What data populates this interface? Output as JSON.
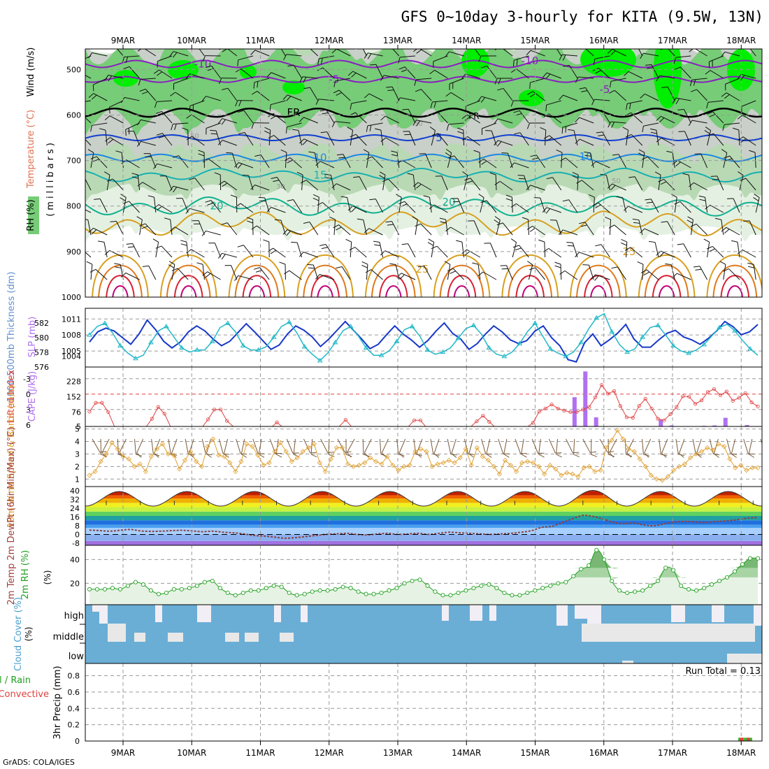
{
  "title": "GFS 0~10day 3-hourly for KITA (9.5W, 13N)",
  "credit": "GrADS: COLA/IGES",
  "dates": [
    "9MAR",
    "10MAR",
    "11MAR",
    "12MAR",
    "13MAR",
    "14MAR",
    "15MAR",
    "16MAR",
    "17MAR",
    "18MAR"
  ],
  "colors": {
    "rh_light": "#e4f1e2",
    "rh_mid": "#b9d9b5",
    "rh_gray": "#c9cfc9",
    "rh_green": "#77cc77",
    "rh_bright": "#00ee00",
    "temp_purple": "#8a1fc0",
    "temp_black": "#000000",
    "temp_blue": "#1040d0",
    "temp_lblue": "#1c88e0",
    "temp_teal": "#18b0b0",
    "temp_green": "#10b090",
    "temp_gold": "#d8a020",
    "temp_orange": "#e07818",
    "temp_red": "#d82030",
    "temp_magenta": "#c0007a",
    "thickness": "#1838c8",
    "slp": "#20b8c8",
    "cape": "#b070f0",
    "li": "#e04040",
    "wind10": "#e0a030",
    "temp2m": "#404040",
    "dew": "#a06060",
    "rh2m": "#20a020",
    "cloud": "#6aaed6",
    "precip": "#e04040"
  },
  "chart_data": [
    {
      "type": "contour-panel",
      "name": "upper-air",
      "ylabel": "(millibars)",
      "yaxis_title_parts": [
        "RH (%)",
        "Temperature (°C)",
        "Wind (m/s)"
      ],
      "y_ticks": [
        500,
        600,
        700,
        800,
        900,
        1000
      ],
      "ylim": [
        1000,
        455
      ],
      "contours": [
        {
          "label": "-10",
          "level_mb": 488
        },
        {
          "label": "-5",
          "level_mb": 522
        },
        {
          "label": "FR",
          "level_mb": 590
        },
        {
          "label": "5",
          "level_mb": 650
        },
        {
          "label": "10",
          "level_mb": 694
        },
        {
          "label": "15",
          "level_mb": 730
        },
        {
          "label": "20",
          "level_mb": 795
        },
        {
          "label": "25",
          "level_mb": 870
        }
      ],
      "labels_shown": [
        "-10",
        "-5",
        "FR",
        "5",
        "10",
        "15",
        "20",
        "25",
        "30",
        "50"
      ]
    },
    {
      "type": "line",
      "name": "thickness-slp",
      "ylabel_left": "1000-500mb Thickness (dm)",
      "ylabel_right": "SLP (mb)",
      "y_ticks_left": [
        576,
        578,
        580,
        582
      ],
      "y_ticks_right": [
        1004,
        1005,
        1008,
        1011
      ],
      "ylim_left": [
        576,
        584
      ],
      "series": [
        {
          "name": "Thickness",
          "values": [
            579.4,
            580.8,
            581.3,
            580.9,
            580.0,
            579.1,
            580.5,
            582.4,
            581.1,
            579.5,
            578.6,
            579.4,
            580.8,
            581.6,
            580.9,
            579.8,
            578.9,
            579.5,
            580.7,
            581.9,
            580.8,
            579.6,
            578.4,
            579.0,
            580.5,
            581.6,
            581.0,
            580.1,
            578.8,
            579.8,
            581.0,
            582.2,
            581.0,
            579.8,
            578.5,
            579.1,
            580.4,
            581.6,
            580.5,
            579.7,
            578.7,
            579.6,
            580.9,
            582.0,
            580.6,
            579.8,
            578.4,
            579.2,
            580.5,
            581.6,
            580.8,
            579.7,
            579.2,
            579.6,
            580.9,
            581.6,
            580.0,
            578.9,
            577.0,
            576.7,
            579.3,
            580.5,
            578.9,
            579.7,
            580.6,
            581.8,
            579.8,
            578.7,
            578.7,
            579.7,
            580.6,
            581.0,
            580.1,
            579.7,
            579.1,
            579.9,
            580.9,
            582.2,
            581.5,
            580.4,
            580.8,
            581.8
          ]
        },
        {
          "name": "SLP",
          "values": [
            1008.0,
            1009.6,
            1010.2,
            1008.4,
            1006.0,
            1004.6,
            1003.6,
            1004.2,
            1006.6,
            1008.8,
            1009.6,
            1007.6,
            1005.6,
            1004.8,
            1005.2,
            1005.2,
            1006.8,
            1009.4,
            1010.2,
            1008.6,
            1006.0,
            1005.2,
            1005.2,
            1005.8,
            1007.6,
            1009.6,
            1010.4,
            1008.4,
            1005.8,
            1004.4,
            1003.2,
            1004.6,
            1006.6,
            1008.8,
            1009.6,
            1007.8,
            1005.6,
            1004.2,
            1004.2,
            1005.0,
            1006.8,
            1009.0,
            1009.6,
            1007.8,
            1005.2,
            1004.4,
            1004.8,
            1005.6,
            1007.4,
            1009.2,
            1009.8,
            1008.2,
            1005.6,
            1004.4,
            1004.0,
            1004.8,
            1006.4,
            1008.6,
            1010.2,
            1007.8,
            1005.4,
            1004.6,
            1004.0,
            1004.8,
            1006.6,
            1009.2,
            1011.2,
            1012.0,
            1008.6,
            1006.2,
            1004.8,
            1005.4,
            1007.6,
            1009.4,
            1009.8,
            1008.0,
            1006.0,
            1005.0,
            1004.6,
            1005.2,
            1006.2,
            1007.8,
            1009.4,
            1010.0,
            1008.8,
            1007.0,
            1005.4,
            1004.2
          ]
        }
      ]
    },
    {
      "type": "bar+line",
      "name": "cape-li",
      "ylabel_left": "Lifted Index",
      "ylabel_right": "CAPE (J/kg)",
      "y_ticks_left": [
        -3,
        0,
        3,
        6
      ],
      "y_ticks_right": [
        5,
        76,
        152,
        228
      ],
      "series": [
        {
          "name": "Lifted Index",
          "values": [
            3.4,
            1.7,
            1.7,
            3.5,
            6.3,
            6.6,
            6.5,
            6.5,
            6.7,
            6.5,
            4.8,
            2.5,
            3.8,
            6.4,
            6.5,
            6.5,
            6.4,
            6.5,
            6.5,
            4.9,
            3.0,
            3.0,
            5.2,
            6.3,
            6.5,
            6.5,
            6.3,
            6.5,
            6.6,
            6.6,
            5.5,
            6.5,
            6.5,
            6.5,
            6.5,
            6.6,
            6.6,
            6.5,
            6.5,
            6.3,
            6.3,
            5.0,
            6.4,
            6.5,
            6.5,
            6.4,
            6.5,
            6.4,
            6.5,
            6.5,
            6.5,
            6.4,
            5.1,
            5.1,
            6.6,
            6.5,
            6.5,
            6.5,
            6.6,
            6.5,
            6.5,
            6.4,
            5.3,
            4.2,
            5.4,
            6.5,
            6.4,
            6.5,
            6.5,
            6.6,
            6.5,
            5.6,
            3.4,
            2.8,
            2.0,
            2.8,
            3.2,
            3.5,
            3.5,
            3.0,
            2.5,
            0.6,
            -1.8,
            -0.1,
            -0.6,
            2.3,
            4.5,
            4.6,
            2.3,
            0.9,
            2.8,
            4.8,
            5.1,
            3.9,
            2.5,
            0.4,
            0.5,
            1.9,
            1.2,
            -0.4,
            -1.0,
            0.2,
            -0.5,
            1.3,
            0.7,
            -0.2,
            1.6,
            2.4
          ]
        },
        {
          "name": "CAPE",
          "values": [
            [
              90,
              150
            ],
            [
              92,
              278
            ],
            [
              94,
              50
            ],
            [
              96,
              5
            ],
            [
              98,
              5
            ],
            [
              100,
              5
            ],
            [
              102,
              5
            ],
            [
              104,
              5
            ],
            [
              106,
              38
            ],
            [
              108,
              10
            ],
            [
              110,
              5
            ],
            [
              112,
              5
            ],
            [
              114,
              8
            ],
            [
              116,
              10
            ],
            [
              118,
              48
            ],
            [
              120,
              5
            ],
            [
              122,
              12
            ],
            [
              124,
              5
            ]
          ]
        }
      ]
    },
    {
      "type": "line+barbs",
      "name": "wind10m",
      "ylabel": "10m Wind Speed & Barbs (m/s)",
      "y_ticks": [
        1,
        2,
        3,
        4,
        5
      ],
      "values": [
        1.3,
        1.6,
        2.4,
        3.0,
        3.9,
        3.4,
        2.8,
        2.6,
        2.0,
        2.2,
        1.6,
        2.8,
        3.4,
        3.8,
        3.0,
        2.9,
        1.8,
        2.5,
        3.2,
        2.4,
        2.0,
        3.6,
        4.2,
        2.9,
        2.8,
        2.3,
        1.6,
        2.4,
        3.8,
        3.6,
        2.9,
        2.1,
        2.3,
        3.2,
        3.9,
        3.2,
        2.4,
        2.7,
        3.2,
        3.5,
        3.8,
        2.3,
        1.6,
        2.6,
        3.5,
        3.5,
        2.2,
        2.0,
        2.1,
        2.3,
        2.7,
        2.4,
        2.2,
        2.8,
        2.1,
        1.7,
        2.0,
        2.1,
        3.2,
        3.4,
        3.2,
        2.0,
        2.2,
        2.3,
        2.5,
        2.3,
        2.7,
        3.4,
        2.1,
        3.5,
        2.8,
        2.5,
        2.0,
        1.4,
        2.5,
        2.1,
        1.6,
        2.3,
        2.4,
        2.3,
        2.0,
        1.4,
        2.1,
        1.8,
        1.3,
        1.5,
        1.4,
        1.2,
        1.9,
        2.0,
        1.6,
        1.7,
        3.5,
        4.1,
        4.9,
        4.2,
        3.4,
        3.2,
        2.6,
        2.0,
        1.3,
        1.0,
        0.9,
        1.2,
        1.7,
        2.0,
        2.2,
        2.7,
        3.0,
        3.2,
        3.5,
        3.3,
        3.8,
        3.6,
        2.6,
        1.9,
        2.1,
        1.7,
        1.9,
        1.9
      ]
    },
    {
      "type": "area",
      "name": "temp2m",
      "ylabel": "2m Temp 2m DewPt (6hr Min/Max) (°C)",
      "y_ticks": [
        -8,
        0,
        8,
        16,
        24,
        32,
        40
      ],
      "series": [
        {
          "name": "Temperature",
          "peaks": [
            39.5,
            39.5,
            39.5,
            39.5,
            39.5,
            39.5,
            39.5,
            40.5,
            39.5,
            39.5
          ],
          "troughs": [
            26,
            26,
            26,
            26,
            26,
            26,
            26,
            26,
            26,
            26
          ]
        },
        {
          "name": "DewPt",
          "values": [
            4.0,
            3.5,
            3.0,
            3.8,
            4.5,
            3.2,
            2.8,
            3.0,
            3.5,
            3.8,
            3.2,
            2.5,
            3.0,
            2.0,
            1.5,
            0.5,
            -1.0,
            -1.5,
            -2.5,
            -3.5,
            -3.0,
            -2.0,
            -1.0,
            0.0,
            0.5,
            1.0,
            0.0,
            -0.5,
            0.5,
            1.0,
            0.0,
            0.5,
            1.0,
            0.0,
            1.0,
            2.0,
            1.5,
            1.0,
            0.5,
            0.0,
            0.5,
            1.0,
            2.0,
            3.5,
            6.5,
            7.5,
            11.0,
            14.5,
            17.5,
            16.5,
            14.0,
            11.0,
            10.0,
            10.5,
            8.5,
            8.0,
            10.0,
            11.5,
            12.0,
            11.5,
            11.0,
            12.0,
            12.5,
            13.5,
            15.0,
            15.5
          ]
        }
      ]
    },
    {
      "type": "area+line",
      "name": "rh2m",
      "ylabel": "2m RH (%)",
      "y_ticks": [
        20,
        40
      ],
      "values": [
        15,
        15,
        15,
        16,
        15,
        18,
        21,
        19,
        14,
        11,
        12,
        15,
        15,
        16,
        18,
        21,
        22,
        16,
        12,
        10,
        12,
        14,
        14,
        16,
        18,
        17,
        12,
        10,
        11,
        13,
        14,
        14,
        15,
        17,
        16,
        13,
        11,
        11,
        12,
        14,
        16,
        20,
        22,
        23,
        18,
        13,
        10,
        10,
        12,
        14,
        16,
        18,
        19,
        16,
        12,
        10,
        10,
        12,
        14,
        16,
        18,
        20,
        21,
        26,
        32,
        35,
        48,
        40,
        22,
        14,
        12,
        13,
        14,
        18,
        22,
        33,
        31,
        18,
        15,
        14,
        16,
        19,
        22,
        25,
        30,
        36,
        41,
        41
      ]
    },
    {
      "type": "stacked-bar",
      "name": "cloud-cover",
      "ylabel": "Cloud Cover (%)",
      "layers": [
        "high",
        "middle",
        "low"
      ]
    },
    {
      "type": "bar",
      "name": "precip",
      "ylabel_parts": [
        "Total / Rain",
        "Convective",
        "3hr Precip (mm)"
      ],
      "y_ticks": [
        0,
        0.2,
        0.4,
        0.6,
        0.8
      ],
      "run_total_text": "Run Total = 0.13"
    }
  ]
}
